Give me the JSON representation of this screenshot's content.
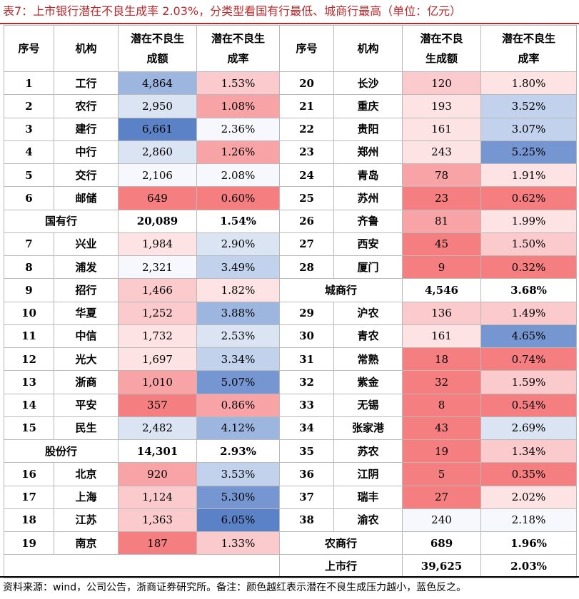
{
  "title": "表7：上市银行潜在不良生成率 2.03%，分类型看国有行最低、城商行最高（单位：亿元）",
  "headers": {
    "seq": "序号",
    "inst": "机构",
    "amount_l1": "潜在不良生",
    "amount_l2": "成额",
    "rate_l1": "潜在不良生",
    "rate_l2": "成率",
    "seq2": "序号",
    "inst2": "机构",
    "amount2_l1": "潜在不良",
    "amount2_l2": "生成额",
    "rate2_l1": "潜在不良生",
    "rate2_l2": "成率"
  },
  "rows": [
    {
      "l": {
        "seq": "1",
        "name": "工行",
        "amount": "4,864",
        "rate": "1.53%"
      },
      "r": {
        "seq": "20",
        "name": "长沙",
        "amount": "120",
        "rate": "1.80%"
      }
    },
    {
      "l": {
        "seq": "2",
        "name": "农行",
        "amount": "2,950",
        "rate": "1.08%"
      },
      "r": {
        "seq": "21",
        "name": "重庆",
        "amount": "193",
        "rate": "3.52%"
      }
    },
    {
      "l": {
        "seq": "3",
        "name": "建行",
        "amount": "6,661",
        "rate": "2.36%"
      },
      "r": {
        "seq": "22",
        "name": "贵阳",
        "amount": "161",
        "rate": "3.07%"
      }
    },
    {
      "l": {
        "seq": "4",
        "name": "中行",
        "amount": "2,860",
        "rate": "1.26%"
      },
      "r": {
        "seq": "23",
        "name": "郑州",
        "amount": "243",
        "rate": "5.25%"
      }
    },
    {
      "l": {
        "seq": "5",
        "name": "交行",
        "amount": "2,106",
        "rate": "2.08%"
      },
      "r": {
        "seq": "24",
        "name": "青岛",
        "amount": "78",
        "rate": "1.91%"
      }
    },
    {
      "l": {
        "seq": "6",
        "name": "邮储",
        "amount": "649",
        "rate": "0.60%"
      },
      "r": {
        "seq": "25",
        "name": "苏州",
        "amount": "23",
        "rate": "0.62%"
      }
    },
    {
      "l": {
        "group": "国有行",
        "amount": "20,089",
        "rate": "1.54%"
      },
      "r": {
        "seq": "26",
        "name": "齐鲁",
        "amount": "81",
        "rate": "1.99%"
      }
    },
    {
      "l": {
        "seq": "7",
        "name": "兴业",
        "amount": "1,984",
        "rate": "2.90%"
      },
      "r": {
        "seq": "27",
        "name": "西安",
        "amount": "45",
        "rate": "1.50%"
      }
    },
    {
      "l": {
        "seq": "8",
        "name": "浦发",
        "amount": "2,321",
        "rate": "3.49%"
      },
      "r": {
        "seq": "28",
        "name": "厦门",
        "amount": "9",
        "rate": "0.32%"
      }
    },
    {
      "l": {
        "seq": "9",
        "name": "招行",
        "amount": "1,466",
        "rate": "1.82%"
      },
      "r": {
        "group": "城商行",
        "amount": "4,546",
        "rate": "3.68%"
      }
    },
    {
      "l": {
        "seq": "10",
        "name": "华夏",
        "amount": "1,252",
        "rate": "3.88%"
      },
      "r": {
        "seq": "29",
        "name": "沪农",
        "amount": "136",
        "rate": "1.49%"
      }
    },
    {
      "l": {
        "seq": "11",
        "name": "中信",
        "amount": "1,732",
        "rate": "2.53%"
      },
      "r": {
        "seq": "30",
        "name": "青农",
        "amount": "161",
        "rate": "4.65%"
      }
    },
    {
      "l": {
        "seq": "12",
        "name": "光大",
        "amount": "1,697",
        "rate": "3.34%"
      },
      "r": {
        "seq": "31",
        "name": "常熟",
        "amount": "18",
        "rate": "0.74%"
      }
    },
    {
      "l": {
        "seq": "13",
        "name": "浙商",
        "amount": "1,010",
        "rate": "5.07%"
      },
      "r": {
        "seq": "32",
        "name": "紫金",
        "amount": "32",
        "rate": "1.59%"
      }
    },
    {
      "l": {
        "seq": "14",
        "name": "平安",
        "amount": "357",
        "rate": "0.86%"
      },
      "r": {
        "seq": "33",
        "name": "无锡",
        "amount": "8",
        "rate": "0.54%"
      }
    },
    {
      "l": {
        "seq": "15",
        "name": "民生",
        "amount": "2,482",
        "rate": "4.12%"
      },
      "r": {
        "seq": "34",
        "name": "张家港",
        "amount": "43",
        "rate": "2.69%"
      }
    },
    {
      "l": {
        "group": "股份行",
        "amount": "14,301",
        "rate": "2.93%"
      },
      "r": {
        "seq": "35",
        "name": "苏农",
        "amount": "19",
        "rate": "1.34%"
      }
    },
    {
      "l": {
        "seq": "16",
        "name": "北京",
        "amount": "920",
        "rate": "3.53%"
      },
      "r": {
        "seq": "36",
        "name": "江阴",
        "amount": "5",
        "rate": "0.35%"
      }
    },
    {
      "l": {
        "seq": "17",
        "name": "上海",
        "amount": "1,124",
        "rate": "5.30%"
      },
      "r": {
        "seq": "37",
        "name": "瑞丰",
        "amount": "27",
        "rate": "2.02%"
      }
    },
    {
      "l": {
        "seq": "18",
        "name": "江苏",
        "amount": "1,363",
        "rate": "6.05%"
      },
      "r": {
        "seq": "38",
        "name": "渝农",
        "amount": "240",
        "rate": "2.18%"
      }
    },
    {
      "l": {
        "seq": "19",
        "name": "南京",
        "amount": "187",
        "rate": "1.33%"
      },
      "r": {
        "group": "农商行",
        "amount": "689",
        "rate": "1.96%"
      }
    },
    {
      "l": {
        "empty": true
      },
      "r": {
        "group": "上市行",
        "amount": "39,625",
        "rate": "2.03%"
      }
    }
  ],
  "cell_colors": {
    "red_strong": "#f57e80",
    "red_mid": "#f8a3a5",
    "red_light": "#fbcacc",
    "red_faint": "#fde3e4",
    "neutral": "#f7f8fd",
    "blue_faint": "#dbe4f3",
    "blue_light": "#c3d2ec",
    "blue_mid": "#9cb6e0",
    "blue_strong": "#7596d0",
    "blue_deep": "#5b82c6"
  },
  "source": "资料来源：wind，公司公告，浙商证券研究所。备注：颜色越红表示潜在不良生成压力越小，蓝色反之。"
}
